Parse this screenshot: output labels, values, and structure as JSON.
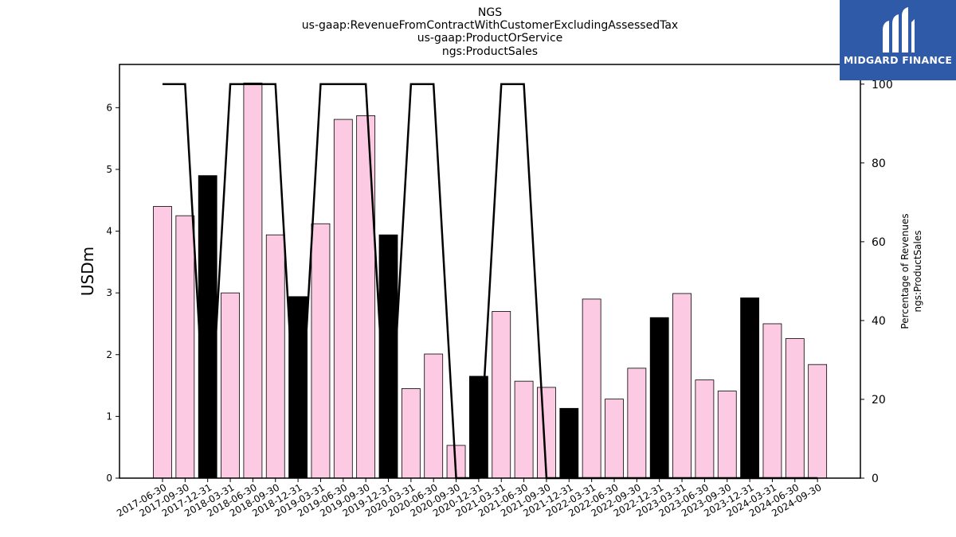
{
  "chart_data": {
    "type": "bar",
    "title_lines": [
      "NGS",
      "us-gaap:RevenueFromContractWithCustomerExcludingAssessedTax",
      "us-gaap:ProductOrService",
      "ngs:ProductSales"
    ],
    "ylabel": "USDm",
    "y2label_lines": [
      "Percentage of Revenues",
      "ngs:ProductSales"
    ],
    "ylim": [
      0,
      6.7
    ],
    "y_ticks": [
      0,
      1,
      2,
      3,
      4,
      5,
      6
    ],
    "y2lim": [
      0,
      105
    ],
    "y2_ticks": [
      0,
      20,
      40,
      60,
      80,
      100
    ],
    "categories": [
      "2017-06-30",
      "2017-09-30",
      "2017-12-31",
      "2018-03-31",
      "2018-06-30",
      "2018-09-30",
      "2018-12-31",
      "2019-03-31",
      "2019-06-30",
      "2019-09-30",
      "2019-12-31",
      "2020-03-31",
      "2020-06-30",
      "2020-09-30",
      "2020-12-31",
      "2021-03-31",
      "2021-06-30",
      "2021-09-30",
      "2021-12-31",
      "2022-03-31",
      "2022-06-30",
      "2022-09-30",
      "2022-12-31",
      "2023-03-31",
      "2023-06-30",
      "2023-09-30",
      "2023-12-31",
      "2024-03-31",
      "2024-06-30",
      "2024-09-30"
    ],
    "series": [
      {
        "type": "bar",
        "values": [
          4.4,
          4.25,
          4.9,
          3.0,
          6.4,
          3.94,
          2.94,
          4.12,
          5.81,
          5.87,
          3.94,
          1.45,
          2.01,
          0.53,
          1.65,
          2.7,
          1.57,
          1.47,
          1.13,
          2.9,
          1.28,
          1.78,
          2.6,
          2.99,
          1.59,
          1.41,
          2.92,
          2.5,
          2.26,
          1.84
        ],
        "annual": [
          false,
          false,
          true,
          false,
          false,
          false,
          true,
          false,
          false,
          false,
          true,
          false,
          false,
          false,
          true,
          false,
          false,
          false,
          true,
          false,
          false,
          false,
          true,
          false,
          false,
          false,
          true,
          false,
          false,
          false
        ]
      },
      {
        "type": "line",
        "axis": "right",
        "values": [
          100,
          100,
          0,
          100,
          100,
          100,
          0,
          100,
          100,
          100,
          0,
          100,
          100,
          0,
          0,
          100,
          100,
          0,
          0,
          0,
          0,
          0,
          0,
          0,
          0,
          0,
          0,
          0,
          0,
          0
        ]
      }
    ],
    "colors": {
      "quarter_bar": "#fccbe3",
      "annual_bar": "#000000",
      "bar_edge": "#000000",
      "line": "#000000"
    },
    "grid": false
  },
  "logo": {
    "text": "MIDGARD FINANCE",
    "background": "#2f5aa8"
  }
}
